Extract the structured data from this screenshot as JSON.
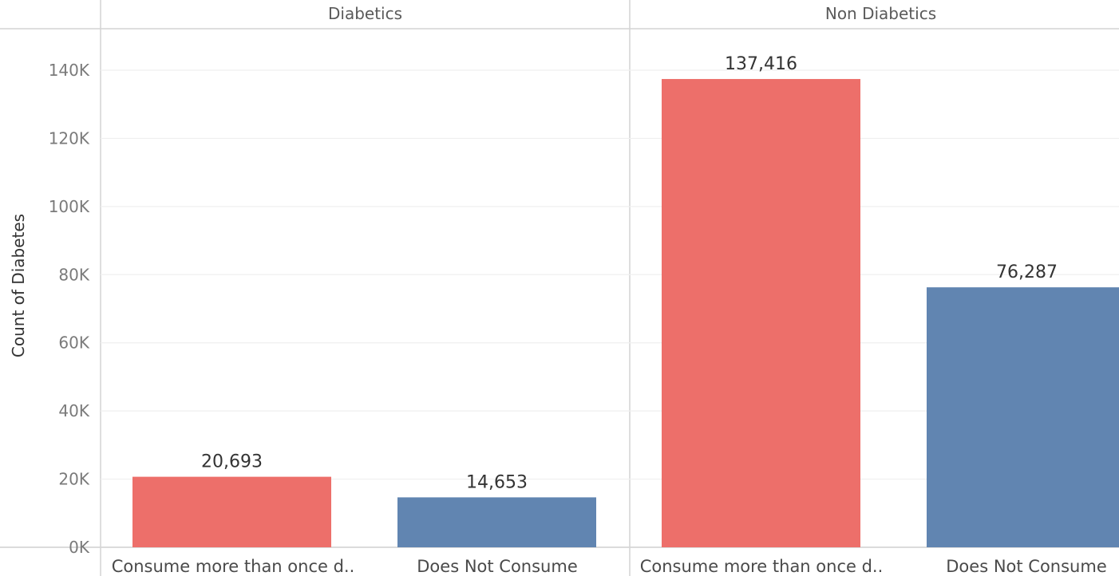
{
  "chart_data": {
    "type": "bar",
    "ylabel": "Count of Diabetes",
    "ylim": [
      0,
      150000
    ],
    "y_ticks": [
      "0K",
      "20K",
      "40K",
      "60K",
      "80K",
      "100K",
      "120K",
      "140K"
    ],
    "y_tick_values": [
      0,
      20000,
      40000,
      60000,
      80000,
      100000,
      120000,
      140000
    ],
    "grid": true,
    "panels": [
      {
        "name": "Diabetics",
        "categories": [
          "Consume more than once d..",
          "Does Not Consume"
        ],
        "values": [
          20693,
          14653
        ],
        "value_labels": [
          "20,693",
          "14,653"
        ]
      },
      {
        "name": "Non Diabetics",
        "categories": [
          "Consume more than once d..",
          "Does Not Consume"
        ],
        "values": [
          137416,
          76287
        ],
        "value_labels": [
          "137,416",
          "76,287"
        ]
      }
    ],
    "colors": {
      "Consume more than once d..": "#ed6f6a",
      "Does Not Consume": "#6185b1"
    }
  }
}
